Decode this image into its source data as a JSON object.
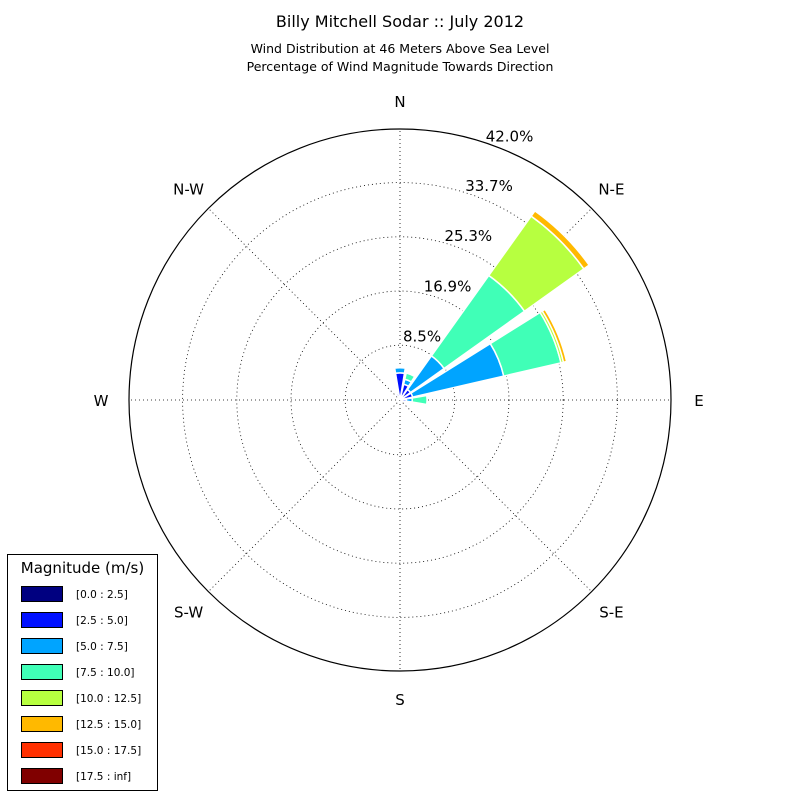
{
  "chart_data": {
    "type": "polar-bar",
    "title": "Billy Mitchell Sodar :: July 2012",
    "subtitle_lines": [
      "Wind Distribution at 46 Meters Above Sea Level",
      "Percentage of Wind Magnitude Towards Direction"
    ],
    "directions": [
      "N",
      "N-E",
      "E",
      "S-E",
      "S",
      "S-W",
      "W",
      "N-W"
    ],
    "radial_ticks": [
      "8.5%",
      "16.9%",
      "25.3%",
      "33.7%",
      "42.0%"
    ],
    "radial_max": 42.0,
    "legend_title": "Magnitude (m/s)",
    "bins": [
      {
        "label": "[0.0 : 2.5]",
        "color": "#000080"
      },
      {
        "label": "[2.5 : 5.0]",
        "color": "#0010ff"
      },
      {
        "label": "[5.0 : 7.5]",
        "color": "#00a4ff"
      },
      {
        "label": "[7.5 : 10.0]",
        "color": "#40ffb7"
      },
      {
        "label": "[10.0 : 12.5]",
        "color": "#b7ff40"
      },
      {
        "label": "[12.5 : 15.0]",
        "color": "#ffb900"
      },
      {
        "label": "[15.0 : 17.5]",
        "color": "#ff3000"
      },
      {
        "label": "[17.5 : inf]",
        "color": "#800000"
      }
    ],
    "wedges": [
      {
        "direction_deg": 22.5,
        "cumulative_percent": [
          0.5,
          2.5,
          3.3,
          4.3
        ]
      },
      {
        "direction_deg": 45,
        "cumulative_percent": [
          0.5,
          2.0,
          8.4,
          23.7,
          35.0,
          36.0
        ]
      },
      {
        "direction_deg": 67.5,
        "cumulative_percent": [
          0.5,
          2.0,
          16.5,
          25.6,
          26.0,
          26.5
        ]
      },
      {
        "direction_deg": 90,
        "cumulative_percent": [
          0.3,
          1.0,
          1.9,
          4.2
        ]
      },
      {
        "direction_deg": 0,
        "cumulative_percent": [
          0.5,
          4.2,
          5.0
        ]
      },
      {
        "direction_deg": 337.5,
        "cumulative_percent": [
          0.3,
          1.0
        ]
      }
    ],
    "grid": true,
    "legend_position": "bottom-left"
  }
}
